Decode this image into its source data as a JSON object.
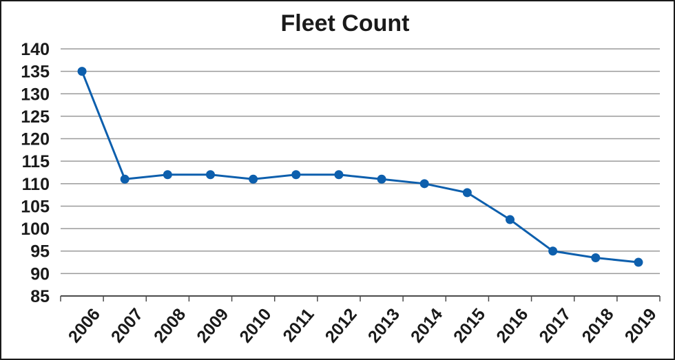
{
  "chart_data": {
    "type": "line",
    "title": "Fleet Count",
    "xlabel": "",
    "ylabel": "",
    "ylim": [
      85,
      140
    ],
    "y_ticks": [
      85,
      90,
      95,
      100,
      105,
      110,
      115,
      120,
      125,
      130,
      135,
      140
    ],
    "categories": [
      "2006",
      "2007",
      "2008",
      "2009",
      "2010",
      "2011",
      "2012",
      "2013",
      "2014",
      "2015",
      "2016",
      "2017",
      "2018",
      "2019"
    ],
    "series": [
      {
        "values": [
          135,
          111,
          112,
          112,
          111,
          112,
          112,
          111,
          110,
          108,
          102,
          95,
          93.5,
          92.5
        ]
      }
    ],
    "grid": true,
    "legend": "none",
    "colors": {
      "line": "#0d5fad",
      "grid": "#9a9a9a",
      "axis": "#4a4a4a",
      "text": "#1a1a1a"
    }
  }
}
